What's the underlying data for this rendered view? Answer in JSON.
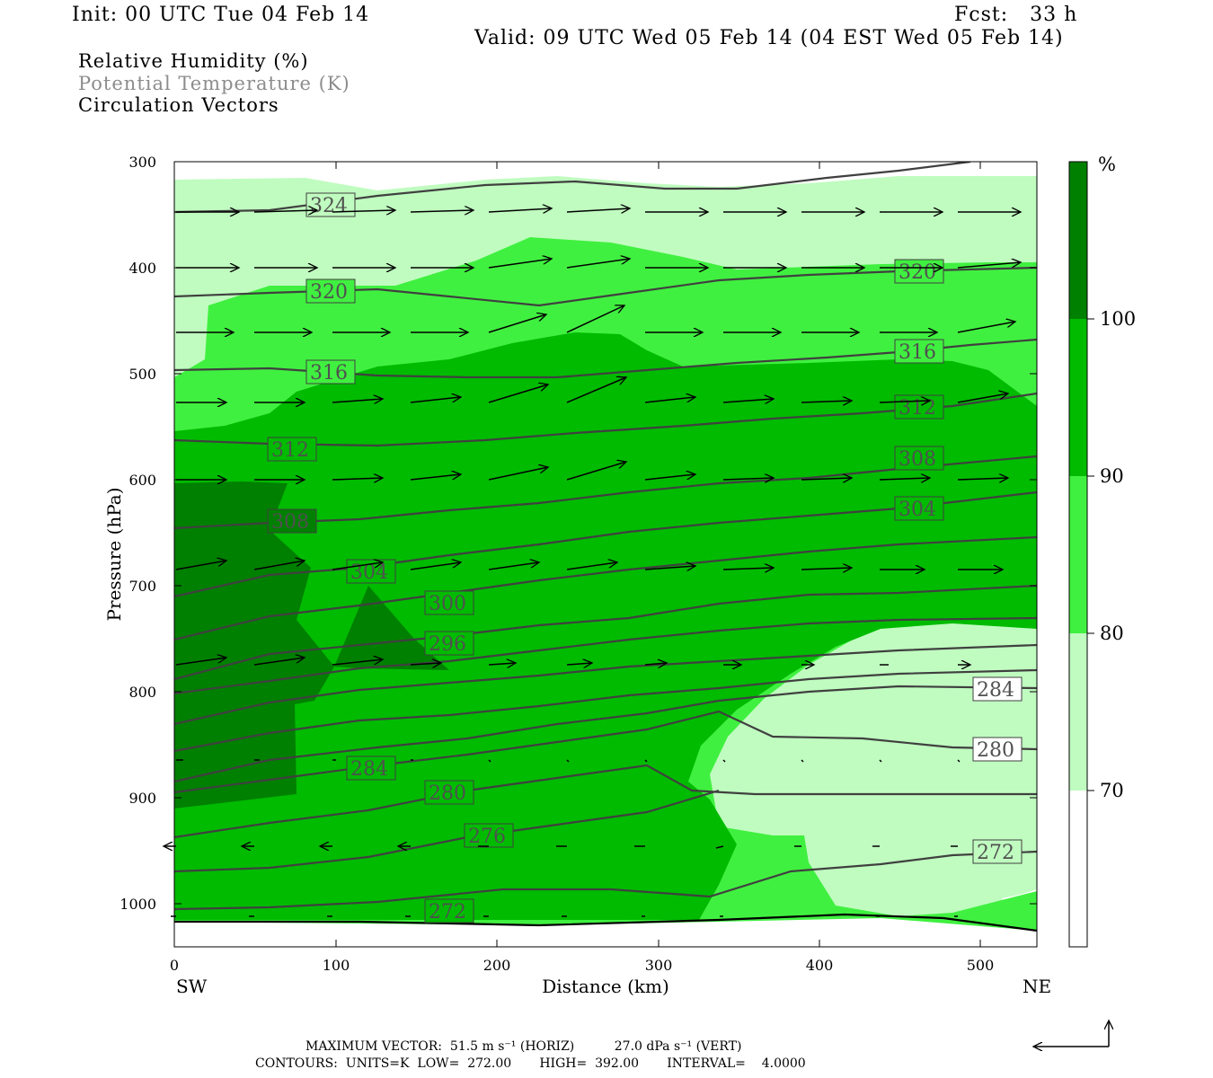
{
  "header": {
    "init": "Init: 00 UTC Tue 04 Feb 14",
    "fcst": "Fcst:   33 h",
    "valid": "Valid: 09 UTC Wed 05 Feb 14 (04 EST Wed 05 Feb 14)"
  },
  "legend": {
    "line1": "Relative Humidity (%)",
    "line2": "Potential Temperature (K)",
    "line3": "Circulation Vectors"
  },
  "footer": {
    "max_vector": "MAXIMUM VECTOR:  51.5 m s⁻¹ (HORIZ)          27.0 dPa s⁻¹ (VERT)",
    "contours": "CONTOURS:  UNITS=K  LOW=  272.00       HIGH=  392.00       INTERVAL=    4.0000"
  },
  "colorbar": {
    "unit": "%",
    "labels": [
      "100",
      "90",
      "80",
      "70"
    ],
    "colors": [
      "#ffffff",
      "#c0fcc0",
      "#40f040",
      "#00bb00",
      "#008000"
    ]
  },
  "chart_data": {
    "type": "cross-section",
    "xlabel": "Distance (km)",
    "ylabel": "Pressure (hPa)",
    "xlim": [
      0,
      535
    ],
    "ylim": [
      1040,
      300
    ],
    "x_ticks": [
      "0",
      "100",
      "200",
      "300",
      "400",
      "500"
    ],
    "y_ticks": [
      "300",
      "400",
      "500",
      "600",
      "700",
      "800",
      "900",
      "1000"
    ],
    "x_end_labels": {
      "left": "SW",
      "right": "NE"
    },
    "fill_levels": [
      70,
      80,
      90,
      100
    ],
    "theta_labels": [
      "324",
      "320",
      "316",
      "312",
      "308",
      "304",
      "300",
      "296",
      "284",
      "280",
      "276",
      "272",
      "320",
      "316",
      "312",
      "308",
      "304",
      "284",
      "280",
      "272"
    ]
  }
}
